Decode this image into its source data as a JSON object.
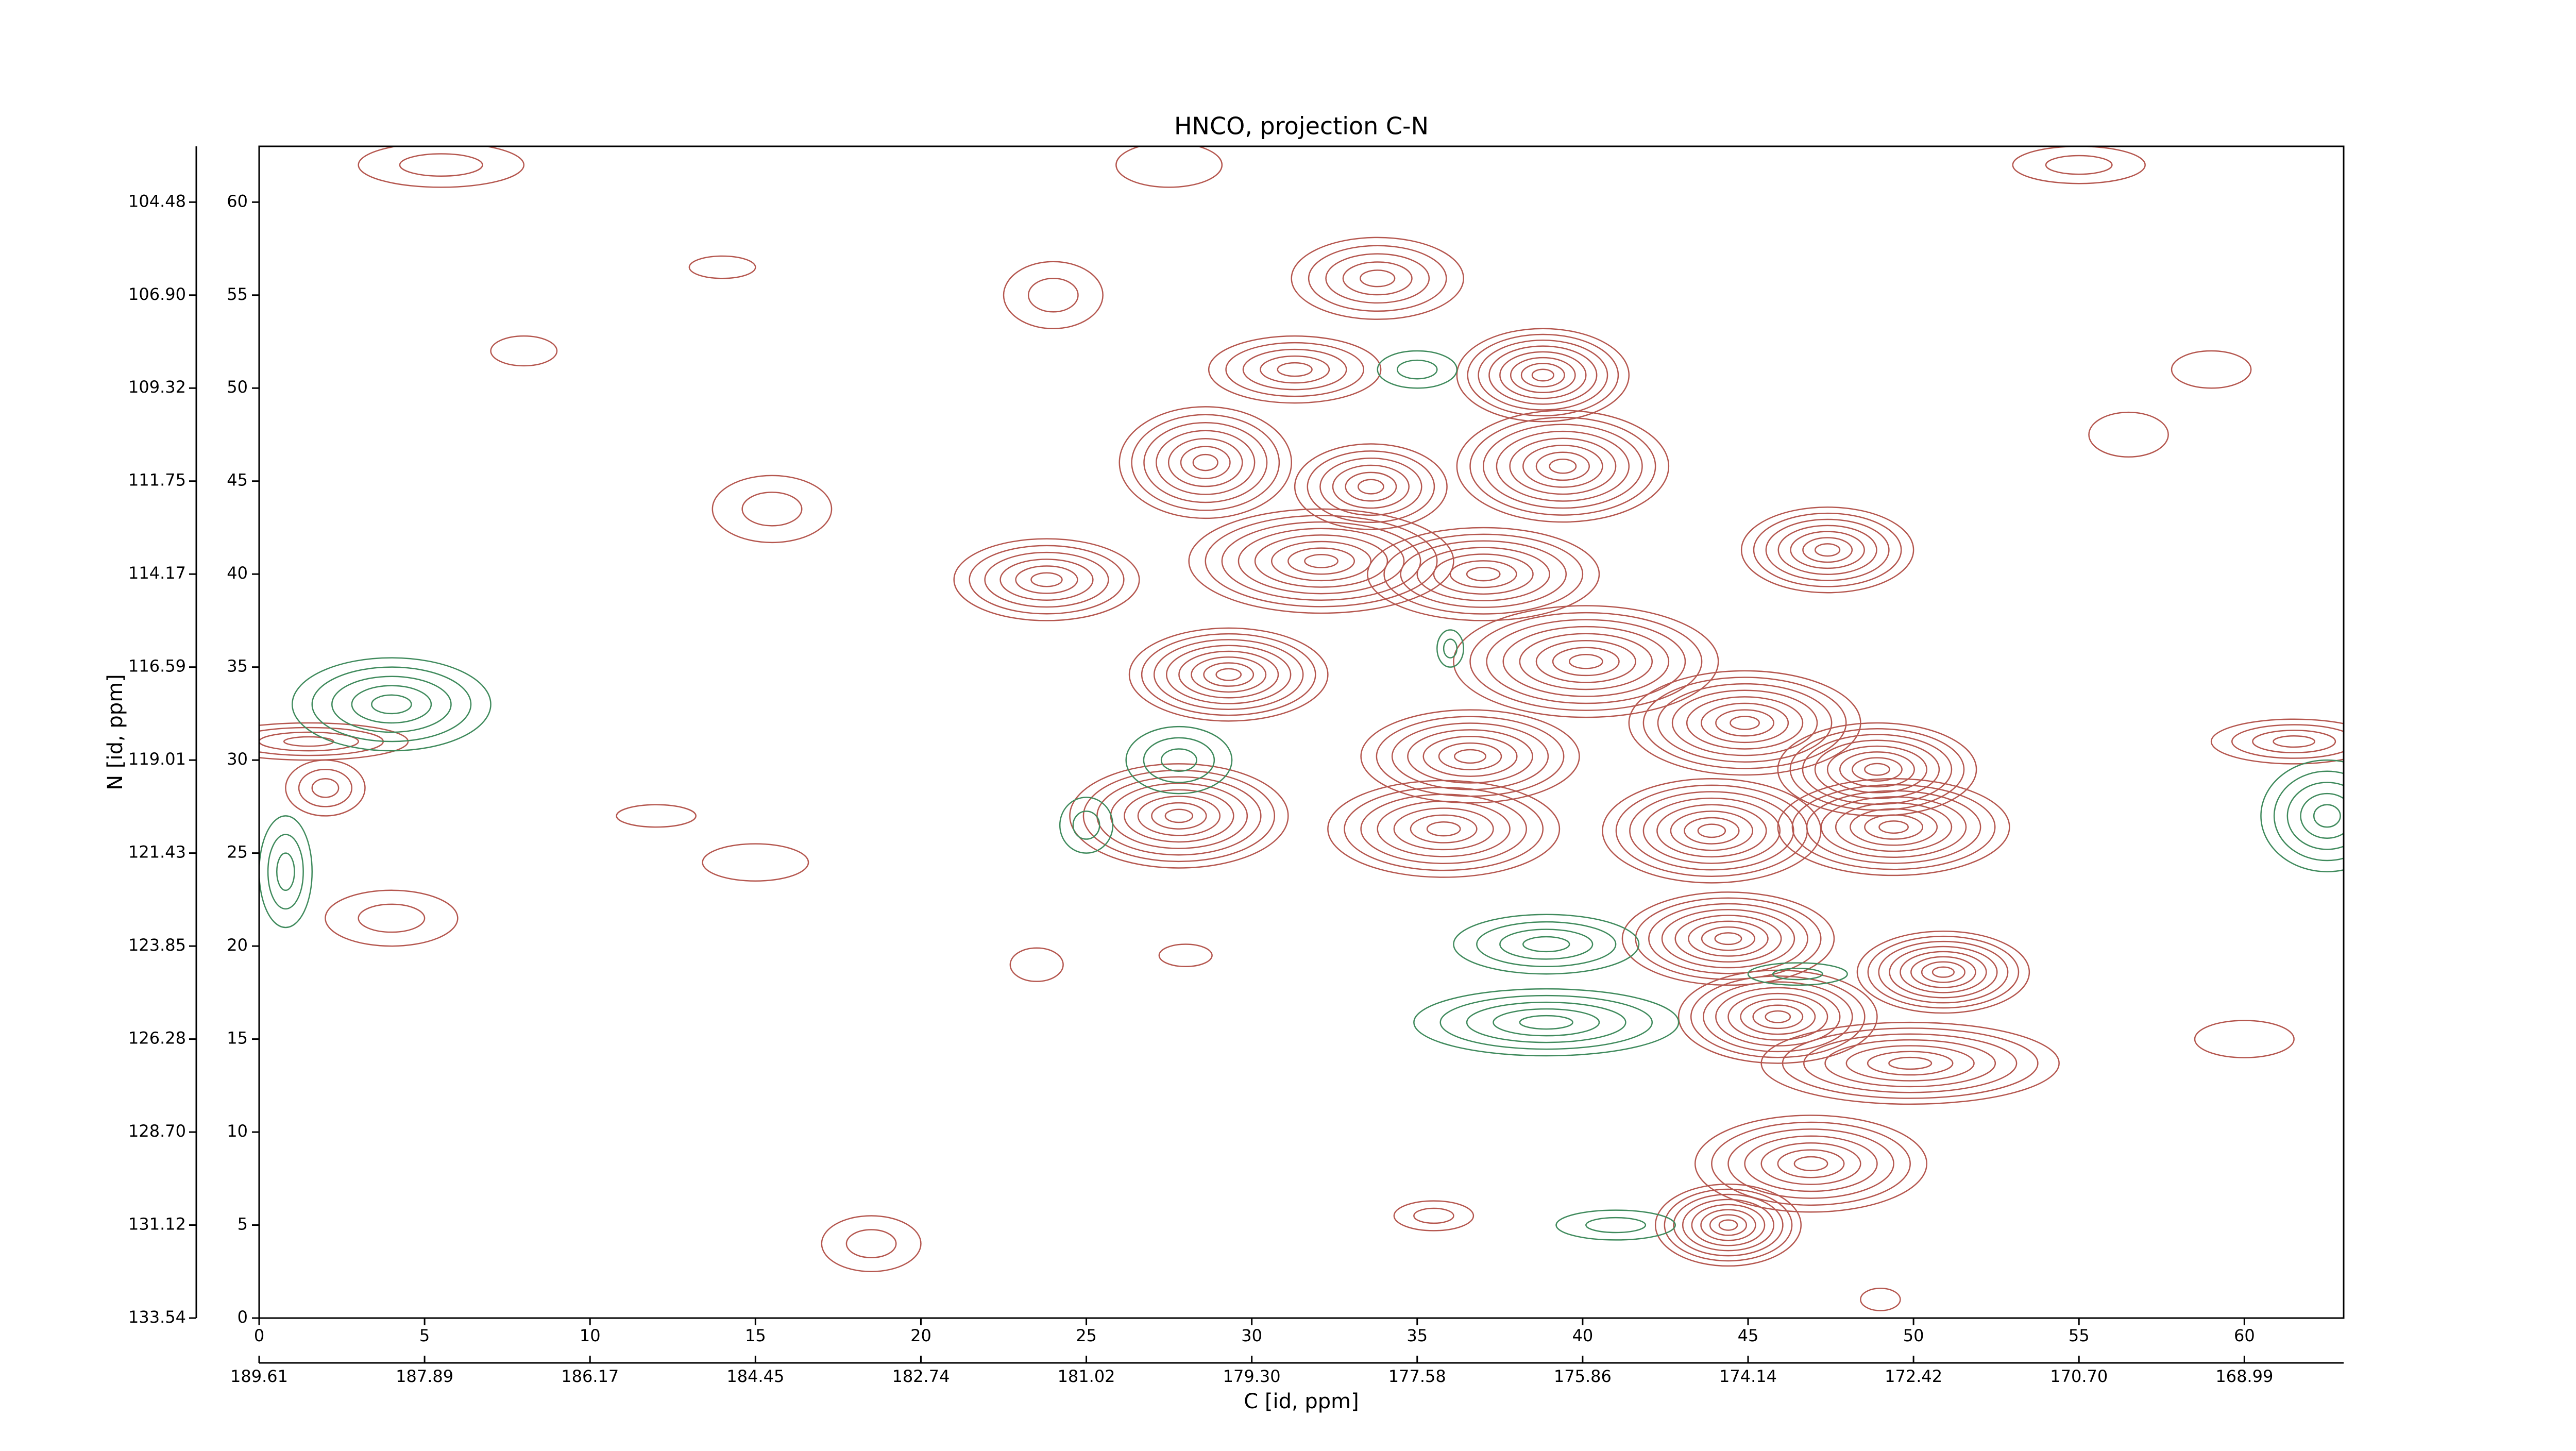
{
  "chart_data": {
    "type": "contour",
    "title": "HNCO, projection C-N",
    "x_label": "C [id, ppm]",
    "y_label": "N [id, ppm]",
    "xlim": [
      0,
      63
    ],
    "ylim": [
      0,
      63
    ],
    "xticks": [
      0,
      5,
      10,
      15,
      20,
      25,
      30,
      35,
      40,
      45,
      50,
      55,
      60
    ],
    "yticks": [
      0,
      5,
      10,
      15,
      20,
      25,
      30,
      35,
      40,
      45,
      50,
      55,
      60
    ],
    "x2ticks": [
      {
        "value": 0,
        "label": "189.61"
      },
      {
        "value": 5,
        "label": "187.89"
      },
      {
        "value": 10,
        "label": "186.17"
      },
      {
        "value": 15,
        "label": "184.45"
      },
      {
        "value": 20,
        "label": "182.74"
      },
      {
        "value": 25,
        "label": "181.02"
      },
      {
        "value": 30,
        "label": "179.30"
      },
      {
        "value": 35,
        "label": "177.58"
      },
      {
        "value": 40,
        "label": "175.86"
      },
      {
        "value": 45,
        "label": "174.14"
      },
      {
        "value": 50,
        "label": "172.42"
      },
      {
        "value": 55,
        "label": "170.70"
      },
      {
        "value": 60,
        "label": "168.99"
      }
    ],
    "y2ticks": [
      {
        "value": 0,
        "label": "133.54"
      },
      {
        "value": 5,
        "label": "131.12"
      },
      {
        "value": 10,
        "label": "128.70"
      },
      {
        "value": 15,
        "label": "126.28"
      },
      {
        "value": 20,
        "label": "123.85"
      },
      {
        "value": 25,
        "label": "121.43"
      },
      {
        "value": 30,
        "label": "119.01"
      },
      {
        "value": 35,
        "label": "116.59"
      },
      {
        "value": 40,
        "label": "114.17"
      },
      {
        "value": 45,
        "label": "111.75"
      },
      {
        "value": 50,
        "label": "109.32"
      },
      {
        "value": 55,
        "label": "106.90"
      },
      {
        "value": 60,
        "label": "104.48"
      }
    ],
    "positive_color": "#b5574f",
    "negative_color": "#3f8a5c",
    "positive_peaks": [
      {
        "x": 33.8,
        "y": 55.9,
        "levels": 5,
        "rx": 2.6,
        "ry": 2.2
      },
      {
        "x": 38.8,
        "y": 50.7,
        "levels": 8,
        "rx": 2.6,
        "ry": 2.5
      },
      {
        "x": 31.3,
        "y": 51,
        "levels": 5,
        "rx": 2.6,
        "ry": 1.8
      },
      {
        "x": 28.6,
        "y": 46,
        "levels": 7,
        "rx": 2.6,
        "ry": 3
      },
      {
        "x": 33.6,
        "y": 44.7,
        "levels": 6,
        "rx": 2.3,
        "ry": 2.3
      },
      {
        "x": 39.4,
        "y": 45.8,
        "levels": 8,
        "rx": 3.2,
        "ry": 3
      },
      {
        "x": 23.8,
        "y": 39.7,
        "levels": 6,
        "rx": 2.8,
        "ry": 2.2
      },
      {
        "x": 32.1,
        "y": 40.7,
        "levels": 8,
        "rx": 4,
        "ry": 2.8
      },
      {
        "x": 37,
        "y": 40,
        "levels": 7,
        "rx": 3.5,
        "ry": 2.5
      },
      {
        "x": 47.4,
        "y": 41.3,
        "levels": 7,
        "rx": 2.6,
        "ry": 2.3
      },
      {
        "x": 29.3,
        "y": 34.6,
        "levels": 8,
        "rx": 3,
        "ry": 2.5
      },
      {
        "x": 40.1,
        "y": 35.3,
        "levels": 8,
        "rx": 4,
        "ry": 3
      },
      {
        "x": 44.9,
        "y": 32,
        "levels": 8,
        "rx": 3.5,
        "ry": 2.8
      },
      {
        "x": 36.6,
        "y": 30.2,
        "levels": 7,
        "rx": 3.3,
        "ry": 2.5
      },
      {
        "x": 48.9,
        "y": 29.5,
        "levels": 8,
        "rx": 3,
        "ry": 2.5
      },
      {
        "x": 27.8,
        "y": 27,
        "levels": 8,
        "rx": 3.3,
        "ry": 2.8
      },
      {
        "x": 35.8,
        "y": 26.3,
        "levels": 7,
        "rx": 3.5,
        "ry": 2.6
      },
      {
        "x": 43.9,
        "y": 26.2,
        "levels": 8,
        "rx": 3.3,
        "ry": 2.8
      },
      {
        "x": 49.4,
        "y": 26.4,
        "levels": 8,
        "rx": 3.5,
        "ry": 2.6
      },
      {
        "x": 44.4,
        "y": 20.4,
        "levels": 8,
        "rx": 3.2,
        "ry": 2.5
      },
      {
        "x": 50.9,
        "y": 18.6,
        "levels": 8,
        "rx": 2.6,
        "ry": 2.2
      },
      {
        "x": 45.9,
        "y": 16.2,
        "levels": 8,
        "rx": 3,
        "ry": 2.5
      },
      {
        "x": 49.9,
        "y": 13.7,
        "levels": 7,
        "rx": 4.5,
        "ry": 2.2
      },
      {
        "x": 46.9,
        "y": 8.3,
        "levels": 7,
        "rx": 3.5,
        "ry": 2.6
      },
      {
        "x": 44.4,
        "y": 5,
        "levels": 8,
        "rx": 2.2,
        "ry": 2.2
      },
      {
        "x": 2,
        "y": 28.5,
        "levels": 3,
        "rx": 1.2,
        "ry": 1.5
      },
      {
        "x": 1.5,
        "y": 31,
        "levels": 4,
        "rx": 3,
        "ry": 1
      },
      {
        "x": 61.5,
        "y": 31,
        "levels": 4,
        "rx": 2.5,
        "ry": 1.2
      },
      {
        "x": 4,
        "y": 21.5,
        "levels": 2,
        "rx": 2,
        "ry": 1.5
      },
      {
        "x": 5.5,
        "y": 62,
        "levels": 2,
        "rx": 2.5,
        "ry": 1.2
      },
      {
        "x": 8,
        "y": 52,
        "levels": 1,
        "rx": 1,
        "ry": 0.8
      },
      {
        "x": 15.5,
        "y": 43.5,
        "levels": 2,
        "rx": 1.8,
        "ry": 1.8
      },
      {
        "x": 24,
        "y": 55,
        "levels": 2,
        "rx": 1.5,
        "ry": 1.8
      },
      {
        "x": 27.5,
        "y": 62,
        "levels": 1,
        "rx": 1.6,
        "ry": 1.2
      },
      {
        "x": 56.5,
        "y": 47.5,
        "levels": 1,
        "rx": 1.2,
        "ry": 1.2
      },
      {
        "x": 55,
        "y": 62,
        "levels": 2,
        "rx": 2,
        "ry": 1
      },
      {
        "x": 59,
        "y": 51,
        "levels": 1,
        "rx": 1.2,
        "ry": 1
      },
      {
        "x": 60,
        "y": 15,
        "levels": 1,
        "rx": 1.5,
        "ry": 1
      },
      {
        "x": 28,
        "y": 19.5,
        "levels": 1,
        "rx": 0.8,
        "ry": 0.6
      },
      {
        "x": 23.5,
        "y": 19,
        "levels": 1,
        "rx": 0.8,
        "ry": 0.9
      },
      {
        "x": 18.5,
        "y": 4,
        "levels": 2,
        "rx": 1.5,
        "ry": 1.5
      },
      {
        "x": 12,
        "y": 27,
        "levels": 1,
        "rx": 1.2,
        "ry": 0.6
      },
      {
        "x": 15,
        "y": 24.5,
        "levels": 1,
        "rx": 1.6,
        "ry": 1
      },
      {
        "x": 14,
        "y": 56.5,
        "levels": 1,
        "rx": 1,
        "ry": 0.6
      },
      {
        "x": 35.5,
        "y": 5.5,
        "levels": 2,
        "rx": 1.2,
        "ry": 0.8
      },
      {
        "x": 49,
        "y": 1,
        "levels": 1,
        "rx": 0.6,
        "ry": 0.6
      }
    ],
    "negative_peaks": [
      {
        "x": 4,
        "y": 33,
        "levels": 5,
        "rx": 3,
        "ry": 2.5
      },
      {
        "x": 38.9,
        "y": 20.1,
        "levels": 4,
        "rx": 2.8,
        "ry": 1.6
      },
      {
        "x": 38.9,
        "y": 15.9,
        "levels": 5,
        "rx": 4,
        "ry": 1.8
      },
      {
        "x": 27.8,
        "y": 30,
        "levels": 3,
        "rx": 1.6,
        "ry": 1.8
      },
      {
        "x": 62.5,
        "y": 27,
        "levels": 5,
        "rx": 2,
        "ry": 3
      },
      {
        "x": 35,
        "y": 51,
        "levels": 2,
        "rx": 1.2,
        "ry": 1
      },
      {
        "x": 41,
        "y": 5,
        "levels": 2,
        "rx": 1.8,
        "ry": 0.8
      },
      {
        "x": 0.8,
        "y": 24,
        "levels": 3,
        "rx": 0.8,
        "ry": 3
      },
      {
        "x": 25,
        "y": 26.5,
        "levels": 2,
        "rx": 0.8,
        "ry": 1.5
      },
      {
        "x": 36,
        "y": 36,
        "levels": 2,
        "rx": 0.4,
        "ry": 1
      },
      {
        "x": 46.5,
        "y": 18.5,
        "levels": 2,
        "rx": 1.5,
        "ry": 0.6
      }
    ]
  }
}
